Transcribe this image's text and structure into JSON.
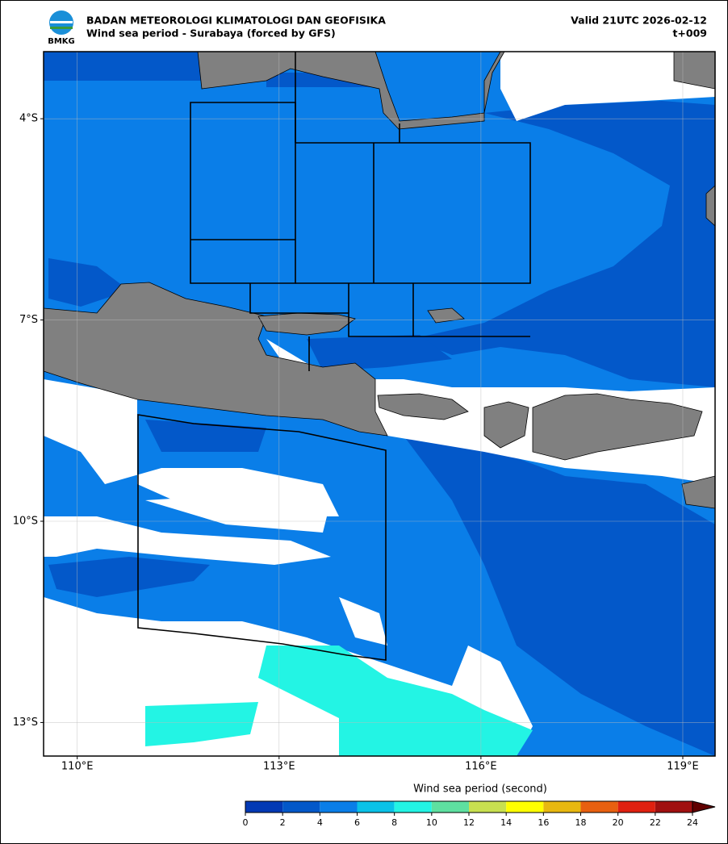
{
  "header": {
    "logo_text": "BMKG",
    "agency": "BADAN METEOROLOGI KLIMATOLOGI DAN GEOFISIKA",
    "product": "Wind sea period - Surabaya (forced by GFS)",
    "valid": "Valid 21UTC 2026-02-12",
    "step": "t+009"
  },
  "map": {
    "xlim": [
      109.5,
      119.48
    ],
    "ylim": [
      -13.5,
      -3.0
    ],
    "xticks": [
      {
        "value": 110,
        "label": "110°E"
      },
      {
        "value": 113,
        "label": "113°E"
      },
      {
        "value": 116,
        "label": "116°E"
      },
      {
        "value": 119,
        "label": "119°E"
      }
    ],
    "yticks": [
      {
        "value": -4,
        "label": "4°S"
      },
      {
        "value": -7,
        "label": "7°S"
      },
      {
        "value": -10,
        "label": "10°S"
      },
      {
        "value": -13,
        "label": "13°S"
      }
    ]
  },
  "colorbar": {
    "label": "Wind sea period (second)",
    "ticks": [
      0,
      2,
      4,
      6,
      8,
      10,
      12,
      14,
      16,
      18,
      20,
      22,
      24
    ],
    "colors": [
      "#0339b4",
      "#0358c9",
      "#0a7ee8",
      "#0ac2e8",
      "#23f4e4",
      "#5ee0a0",
      "#c8e050",
      "#ffff00",
      "#e8b810",
      "#e86010",
      "#e02010",
      "#a01010"
    ],
    "extend_color": "#600000"
  }
}
